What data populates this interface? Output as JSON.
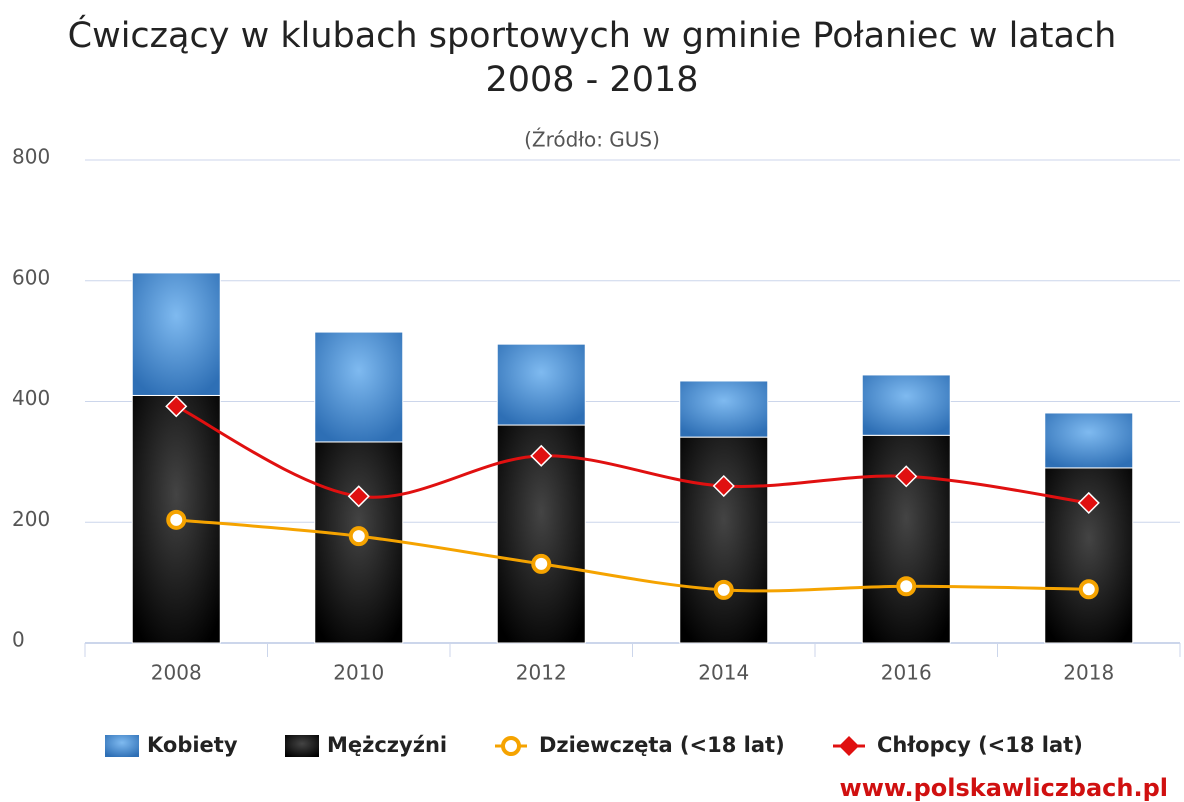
{
  "chart_data": {
    "type": "bar",
    "title": "Ćwiczący w klubach sportowych w gminie Połaniec w latach 2008 - 2018",
    "subtitle": "(Źródło: GUS)",
    "watermark": "www.polskawliczbach.pl",
    "categories": [
      "2008",
      "2010",
      "2012",
      "2014",
      "2016",
      "2018"
    ],
    "ylim": [
      0,
      800
    ],
    "yticks": [
      0,
      200,
      400,
      600,
      800
    ],
    "grid": true,
    "stacked": true,
    "legend": "bottom",
    "series": [
      {
        "name": "Kobiety",
        "type": "bar",
        "color": "#4a8fd6",
        "values": [
          203,
          182,
          134,
          93,
          100,
          91
        ]
      },
      {
        "name": "Mężczyźni",
        "type": "bar",
        "color": "#111111",
        "values": [
          410,
          333,
          361,
          341,
          344,
          290
        ]
      },
      {
        "name": "Dziewczęta (<18 lat)",
        "type": "line",
        "marker": "circle",
        "color": "#f5a300",
        "values": [
          204,
          177,
          131,
          88,
          94,
          89
        ]
      },
      {
        "name": "Chłopcy (<18 lat)",
        "type": "line",
        "marker": "diamond",
        "color": "#e01010",
        "values": [
          392,
          243,
          310,
          260,
          276,
          232
        ]
      }
    ]
  }
}
